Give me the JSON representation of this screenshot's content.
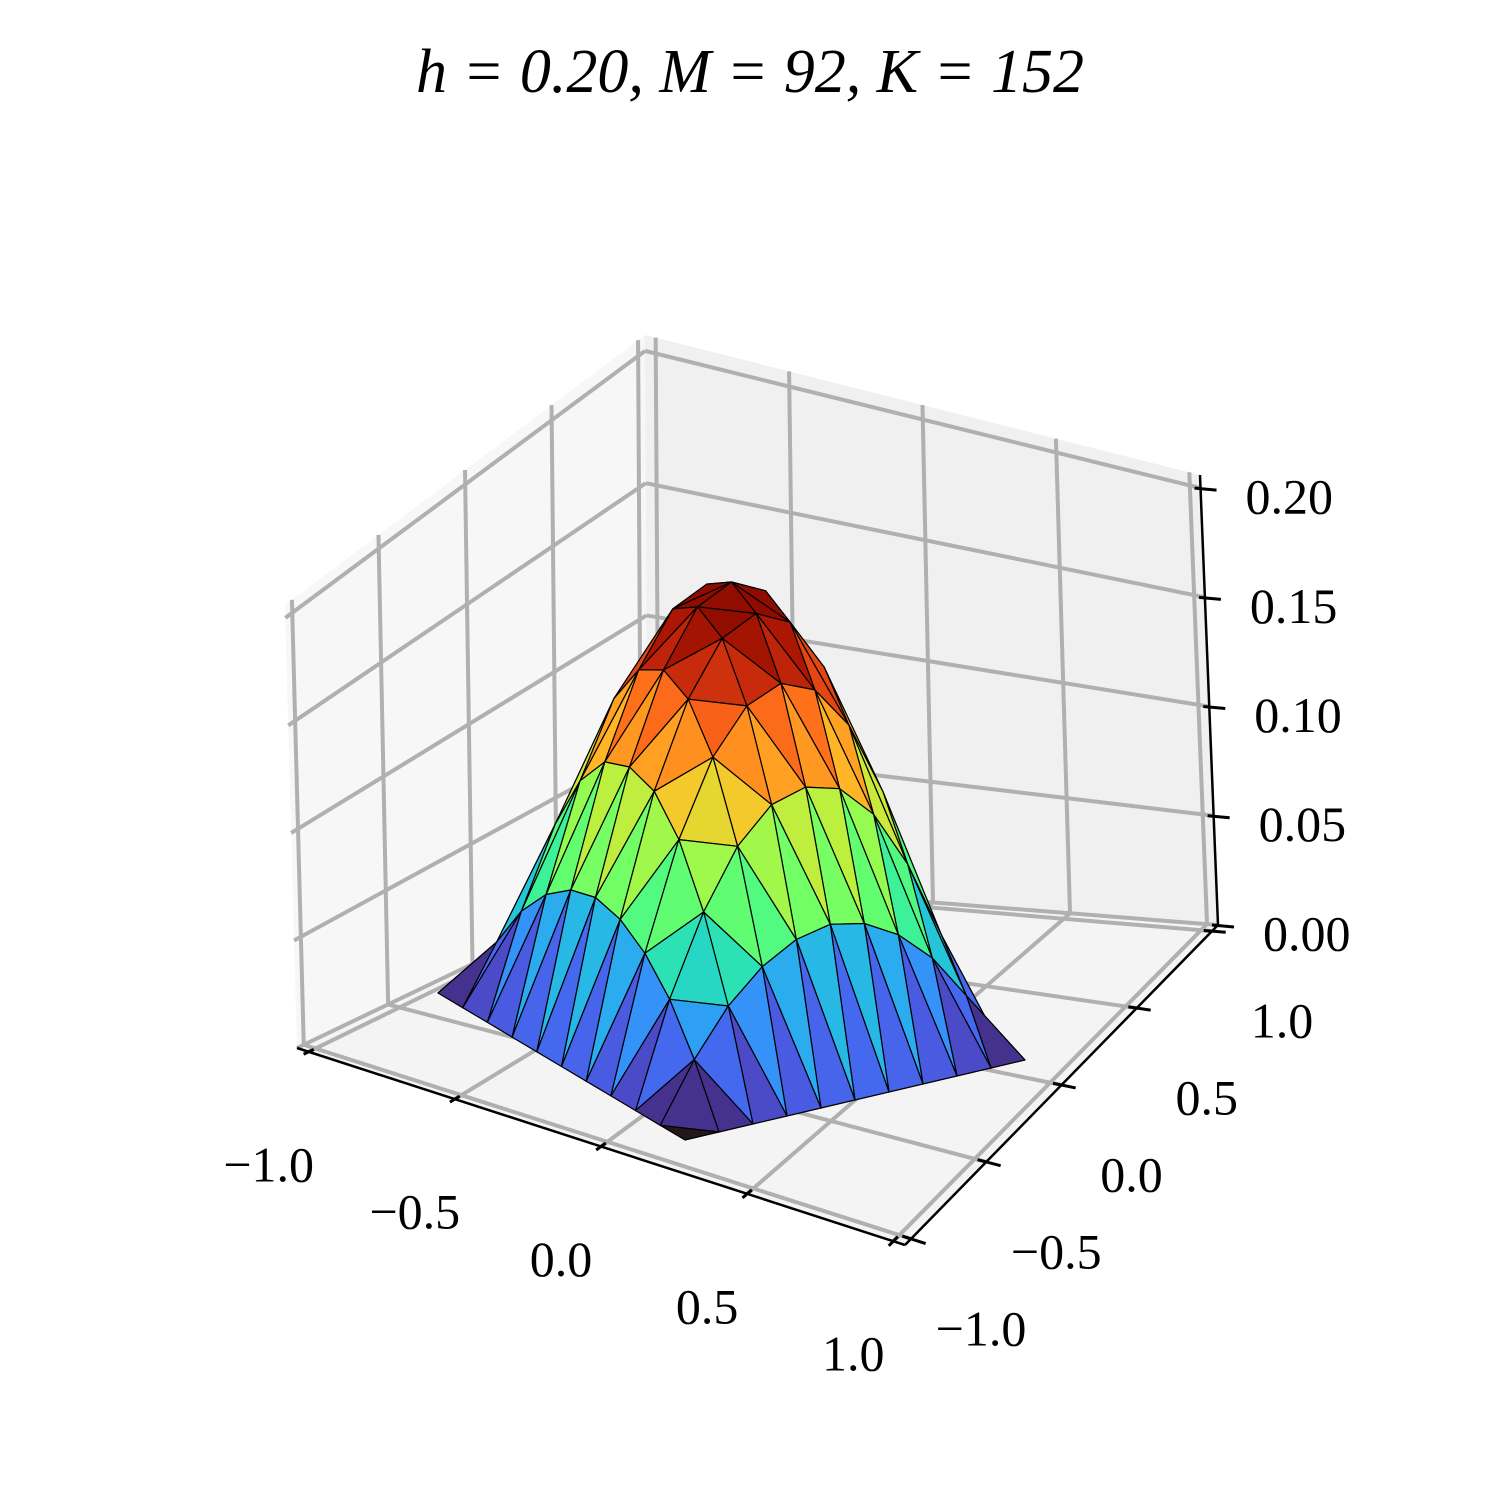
{
  "chart_data": {
    "type": "trisurf",
    "title": "h = 0.20, M = 92, K = 152",
    "colormap": "turbo",
    "edgecolor": "#000000",
    "z": [
      [
        0,
        0,
        0,
        0,
        0,
        0,
        0,
        0,
        0,
        0,
        0
      ],
      [
        0,
        0.024,
        0.043,
        0.056,
        0.064,
        0.067,
        0.064,
        0.056,
        0.043,
        0.024,
        0
      ],
      [
        0,
        0.043,
        0.076,
        0.1,
        0.114,
        0.118,
        0.114,
        0.1,
        0.076,
        0.043,
        0
      ],
      [
        0,
        0.056,
        0.1,
        0.131,
        0.149,
        0.155,
        0.149,
        0.131,
        0.1,
        0.056,
        0
      ],
      [
        0,
        0.064,
        0.114,
        0.149,
        0.171,
        0.178,
        0.171,
        0.149,
        0.114,
        0.064,
        0
      ],
      [
        0,
        0.067,
        0.118,
        0.155,
        0.178,
        0.185,
        0.178,
        0.155,
        0.118,
        0.067,
        0
      ],
      [
        0,
        0.064,
        0.114,
        0.149,
        0.171,
        0.178,
        0.171,
        0.149,
        0.114,
        0.064,
        0
      ],
      [
        0,
        0.056,
        0.1,
        0.131,
        0.149,
        0.155,
        0.149,
        0.131,
        0.1,
        0.056,
        0
      ],
      [
        0,
        0.043,
        0.076,
        0.1,
        0.114,
        0.118,
        0.114,
        0.1,
        0.076,
        0.043,
        0
      ],
      [
        0,
        0.024,
        0.043,
        0.056,
        0.064,
        0.067,
        0.064,
        0.056,
        0.043,
        0.024,
        0
      ],
      [
        0,
        0,
        0,
        0,
        0,
        0,
        0,
        0,
        0,
        0,
        0
      ]
    ],
    "xlim": [
      -1.04,
      1.04
    ],
    "ylim": [
      -1.04,
      1.04
    ],
    "zlim": [
      0,
      0.206
    ],
    "xticks": [
      {
        "value": -1,
        "label": "−1.0"
      },
      {
        "value": -0.5,
        "label": "−0.5"
      },
      {
        "value": 0,
        "label": "0.0"
      },
      {
        "value": 0.5,
        "label": "0.5"
      },
      {
        "value": 1,
        "label": "1.0"
      }
    ],
    "yticks": [
      {
        "value": -1,
        "label": "−1.0"
      },
      {
        "value": -0.5,
        "label": "−0.5"
      },
      {
        "value": 0,
        "label": "0.0"
      },
      {
        "value": 0.5,
        "label": "0.5"
      },
      {
        "value": 1,
        "label": "1.0"
      }
    ],
    "zticks": [
      {
        "value": 0,
        "label": "0.00"
      },
      {
        "value": 0.05,
        "label": "0.05"
      },
      {
        "value": 0.1,
        "label": "0.10"
      },
      {
        "value": 0.15,
        "label": "0.15"
      },
      {
        "value": 0.2,
        "label": "0.20"
      }
    ],
    "grid": true
  }
}
